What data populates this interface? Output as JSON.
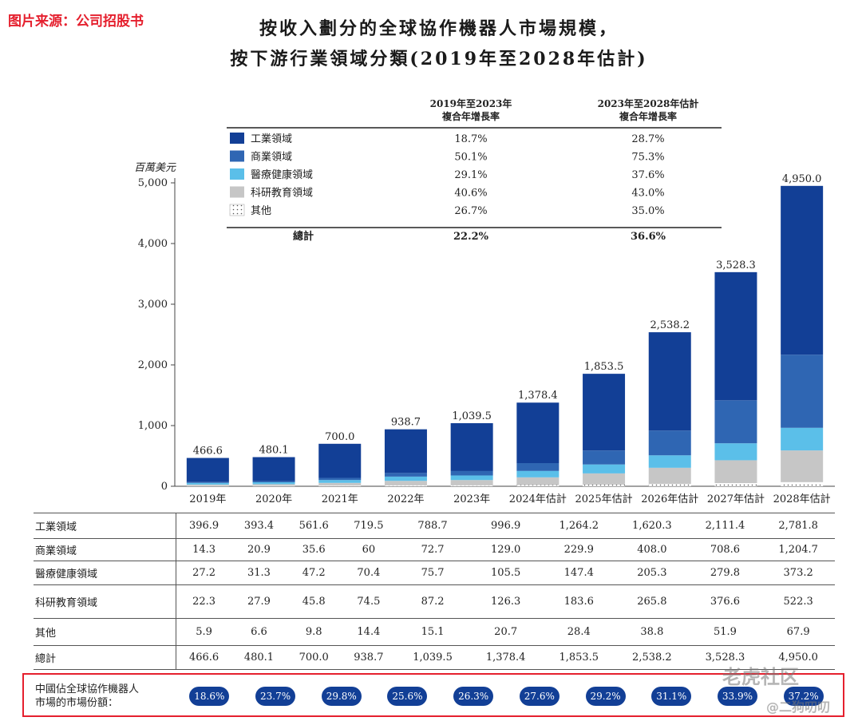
{
  "source_tag": "图片来源：公司招股书",
  "title_line1": "按收入劃分的全球協作機器人市場規模，",
  "title_line2": "按下游行業領域分類(2019年至2028年估計)",
  "watermark": {
    "brand": "老虎社区",
    "user": "@二狗叨叨"
  },
  "colors": {
    "industrial": "#123f96",
    "commercial": "#2f66b3",
    "medical": "#5bbfe9",
    "research": "#c6c6c6",
    "other": "#ffffff",
    "share_pill": "#123f96",
    "highlight": "#e5202e"
  },
  "chart_data": {
    "type": "bar",
    "stacked": true,
    "ylabel": "百萬美元",
    "ylim": [
      0,
      5000
    ],
    "yticks": [
      "0",
      "1,000",
      "2,000",
      "3,000",
      "4,000",
      "5,000"
    ],
    "ytick_values": [
      0,
      1000,
      2000,
      3000,
      4000,
      5000
    ],
    "categories": [
      "2019年",
      "2020年",
      "2021年",
      "2022年",
      "2023年",
      "2024年估計",
      "2025年估計",
      "2026年估計",
      "2027年估計",
      "2028年估計"
    ],
    "series": [
      {
        "key": "other",
        "name": "其他",
        "values": [
          5.9,
          6.6,
          9.8,
          14.4,
          15.1,
          20.7,
          28.4,
          38.8,
          51.9,
          67.9
        ]
      },
      {
        "key": "research",
        "name": "科研教育領域",
        "values": [
          22.3,
          27.9,
          45.8,
          74.5,
          87.2,
          126.3,
          183.6,
          265.8,
          376.6,
          522.3
        ]
      },
      {
        "key": "medical",
        "name": "醫療健康領域",
        "values": [
          27.2,
          31.3,
          47.2,
          70.4,
          75.7,
          105.5,
          147.4,
          205.3,
          279.8,
          373.2
        ]
      },
      {
        "key": "commercial",
        "name": "商業領域",
        "values": [
          14.3,
          20.9,
          35.6,
          60,
          72.7,
          129.0,
          229.9,
          408.0,
          708.6,
          1204.7
        ]
      },
      {
        "key": "industrial",
        "name": "工業領域",
        "values": [
          396.9,
          393.4,
          561.6,
          719.5,
          788.7,
          996.9,
          1264.2,
          1620.3,
          2111.4,
          2781.8
        ]
      }
    ],
    "totals": [
      466.6,
      480.1,
      700.0,
      938.7,
      1039.5,
      1378.4,
      1853.5,
      2538.2,
      3528.3,
      4950.0
    ],
    "total_labels": [
      "466.6",
      "480.1",
      "700.0",
      "938.7",
      "1,039.5",
      "1,378.4",
      "1,853.5",
      "2,538.2",
      "3,528.3",
      "4,950.0"
    ],
    "legend": {
      "header1": [
        "2019年至2023年",
        "複合年增長率"
      ],
      "header2": [
        "2023年至2028年估計",
        "複合年增長率"
      ],
      "rows": [
        {
          "key": "industrial",
          "name": "工業領域",
          "cagr1": "18.7%",
          "cagr2": "28.7%"
        },
        {
          "key": "commercial",
          "name": "商業領域",
          "cagr1": "50.1%",
          "cagr2": "75.3%"
        },
        {
          "key": "medical",
          "name": "醫療健康領域",
          "cagr1": "29.1%",
          "cagr2": "37.6%"
        },
        {
          "key": "research",
          "name": "科研教育領域",
          "cagr1": "40.6%",
          "cagr2": "43.0%"
        },
        {
          "key": "other",
          "name": "其他",
          "cagr1": "26.7%",
          "cagr2": "35.0%"
        }
      ],
      "total": {
        "name": "總計",
        "cagr1": "22.2%",
        "cagr2": "36.6%"
      }
    }
  },
  "table": {
    "rows": [
      {
        "label": "工業領域",
        "values": [
          "396.9",
          "393.4",
          "561.6",
          "719.5",
          "788.7",
          "996.9",
          "1,264.2",
          "1,620.3",
          "2,111.4",
          "2,781.8"
        ]
      },
      {
        "label": "商業領域",
        "values": [
          "14.3",
          "20.9",
          "35.6",
          "60",
          "72.7",
          "129.0",
          "229.9",
          "408.0",
          "708.6",
          "1,204.7"
        ]
      },
      {
        "label": "醫療健康領域",
        "values": [
          "27.2",
          "31.3",
          "47.2",
          "70.4",
          "75.7",
          "105.5",
          "147.4",
          "205.3",
          "279.8",
          "373.2"
        ]
      },
      {
        "label": "科研教育領域",
        "values": [
          "22.3",
          "27.9",
          "45.8",
          "74.5",
          "87.2",
          "126.3",
          "183.6",
          "265.8",
          "376.6",
          "522.3"
        ]
      },
      {
        "label": "其他",
        "values": [
          "5.9",
          "6.6",
          "9.8",
          "14.4",
          "15.1",
          "20.7",
          "28.4",
          "38.8",
          "51.9",
          "67.9"
        ]
      },
      {
        "label": "總計",
        "values": [
          "466.6",
          "480.1",
          "700.0",
          "938.7",
          "1,039.5",
          "1,378.4",
          "1,853.5",
          "2,538.2",
          "3,528.3",
          "4,950.0"
        ]
      }
    ]
  },
  "market_share": {
    "label_line1": "中國佔全球協作機器人",
    "label_line2": "市場的市場份額：",
    "values": [
      "18.6%",
      "23.7%",
      "29.8%",
      "25.6%",
      "26.3%",
      "27.6%",
      "29.2%",
      "31.1%",
      "33.9%",
      "37.2%"
    ]
  }
}
